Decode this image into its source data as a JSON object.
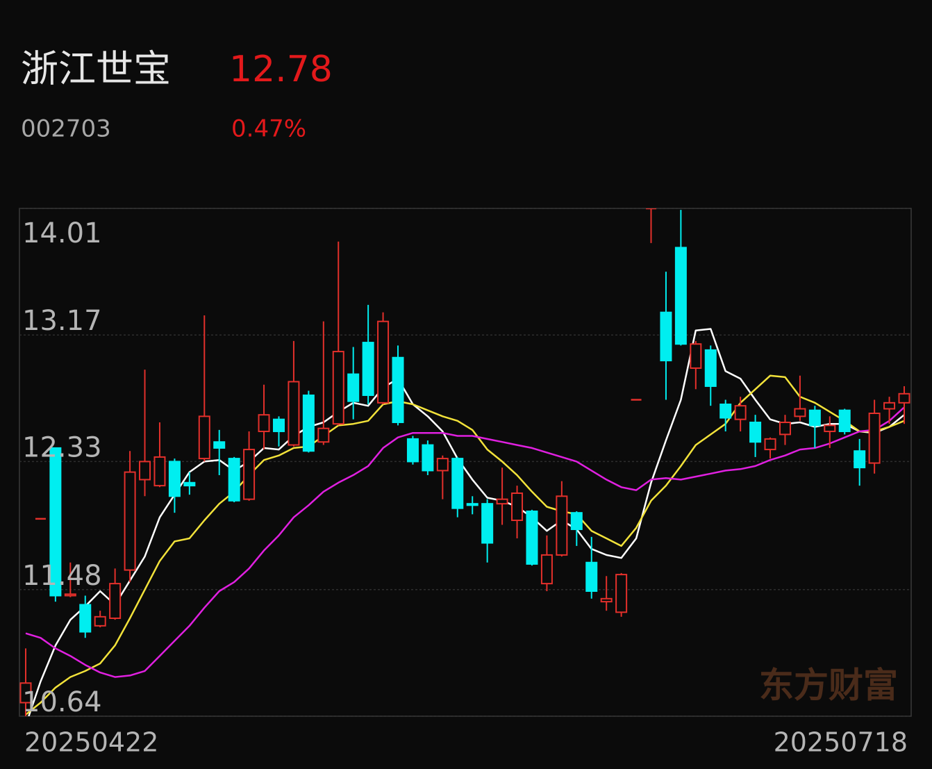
{
  "header": {
    "name": "浙江世宝",
    "price": "12.78",
    "code": "002703",
    "change": "0.47%"
  },
  "chart_data": {
    "type": "candlestick",
    "watermark": "东方财富",
    "categories": [
      "20250422",
      null,
      null,
      null,
      null,
      null,
      null,
      null,
      null,
      null,
      null,
      null,
      null,
      null,
      null,
      null,
      null,
      null,
      null,
      null,
      null,
      null,
      null,
      null,
      null,
      null,
      null,
      null,
      null,
      null,
      null,
      null,
      null,
      null,
      null,
      null,
      null,
      null,
      null,
      null,
      null,
      null,
      null,
      null,
      null,
      null,
      null,
      null,
      null,
      null,
      null,
      null,
      null,
      null,
      null,
      null,
      null,
      null,
      null,
      "20250718"
    ],
    "open": [
      10.73,
      11.95,
      12.42,
      11.44,
      11.38,
      11.24,
      11.29,
      11.61,
      12.21,
      12.17,
      12.33,
      12.19,
      12.35,
      12.46,
      12.35,
      12.08,
      12.53,
      12.61,
      12.44,
      12.77,
      12.46,
      12.58,
      12.91,
      13.12,
      12.72,
      13.02,
      12.48,
      12.44,
      12.27,
      12.35,
      12.05,
      12.05,
      12.05,
      11.94,
      12.0,
      11.52,
      11.71,
      11.99,
      11.66,
      11.4,
      11.33,
      12.74,
      14.01,
      13.32,
      13.75,
      12.95,
      13.07,
      12.71,
      12.61,
      12.59,
      12.41,
      12.51,
      12.63,
      12.67,
      12.53,
      12.67,
      12.4,
      12.32,
      12.68,
      12.72
    ],
    "high": [
      11.09,
      11.95,
      12.42,
      11.66,
      11.44,
      11.34,
      11.62,
      12.4,
      12.94,
      12.59,
      12.35,
      12.26,
      13.3,
      12.54,
      12.36,
      12.53,
      12.84,
      12.63,
      13.13,
      12.8,
      13.26,
      13.79,
      13.09,
      13.37,
      13.32,
      13.1,
      12.5,
      12.47,
      12.37,
      12.36,
      12.1,
      12.08,
      12.29,
      12.17,
      12.01,
      11.84,
      12.2,
      12.0,
      11.83,
      11.57,
      11.59,
      12.74,
      14.01,
      13.59,
      14.0,
      13.13,
      13.1,
      12.74,
      12.76,
      12.64,
      12.49,
      12.64,
      12.9,
      12.7,
      12.63,
      12.68,
      12.48,
      12.74,
      12.76,
      12.83
    ],
    "low": [
      10.64,
      11.95,
      11.4,
      11.43,
      11.16,
      11.23,
      11.28,
      11.53,
      12.1,
      12.16,
      11.99,
      12.11,
      12.33,
      12.24,
      12.06,
      12.07,
      12.41,
      12.43,
      12.43,
      12.39,
      12.44,
      12.57,
      12.61,
      12.71,
      12.71,
      12.57,
      12.31,
      12.24,
      12.08,
      11.96,
      11.98,
      11.66,
      11.91,
      11.82,
      11.64,
      11.47,
      11.7,
      11.77,
      11.42,
      11.34,
      11.3,
      12.74,
      13.78,
      12.74,
      13.1,
      12.81,
      12.7,
      12.53,
      12.53,
      12.36,
      12.35,
      12.44,
      12.6,
      12.42,
      12.42,
      12.51,
      12.17,
      12.25,
      12.58,
      12.58
    ],
    "close": [
      10.86,
      11.95,
      11.44,
      11.45,
      11.2,
      11.3,
      11.52,
      12.26,
      12.33,
      12.36,
      12.1,
      12.17,
      12.63,
      12.42,
      12.07,
      12.41,
      12.64,
      12.53,
      12.86,
      12.4,
      12.55,
      13.06,
      12.73,
      12.77,
      13.26,
      12.59,
      12.33,
      12.27,
      12.35,
      12.02,
      12.04,
      11.79,
      12.08,
      12.12,
      11.65,
      11.71,
      12.1,
      11.88,
      11.47,
      11.42,
      11.58,
      12.74,
      14.01,
      13.0,
      13.11,
      13.11,
      12.83,
      12.62,
      12.7,
      12.46,
      12.48,
      12.59,
      12.68,
      12.57,
      12.57,
      12.53,
      12.29,
      12.65,
      12.72,
      12.78
    ],
    "up_color": "#e3302b",
    "down_color": "#00eef0",
    "series": [
      {
        "color": "#ffffff",
        "values": [
          10.58,
          10.87,
          11.11,
          11.28,
          11.37,
          11.47,
          11.38,
          11.54,
          11.7,
          11.96,
          12.11,
          12.26,
          12.33,
          12.34,
          12.27,
          12.33,
          12.42,
          12.41,
          12.5,
          12.56,
          12.59,
          12.66,
          12.72,
          12.7,
          12.82,
          12.88,
          12.71,
          12.63,
          12.53,
          12.35,
          12.21,
          12.09,
          12.07,
          12.03,
          11.96,
          11.87,
          11.94,
          11.88,
          11.75,
          11.71,
          11.69,
          11.82,
          12.19,
          12.47,
          12.74,
          13.2,
          13.21,
          12.93,
          12.88,
          12.74,
          12.61,
          12.58,
          12.59,
          12.56,
          12.58,
          12.58,
          12.53,
          12.52,
          12.56,
          12.64
        ]
      },
      {
        "color": "#f2e23a",
        "values": [
          10.65,
          10.73,
          10.83,
          10.9,
          10.94,
          10.99,
          11.11,
          11.29,
          11.48,
          11.67,
          11.8,
          11.82,
          11.94,
          12.05,
          12.13,
          12.24,
          12.34,
          12.37,
          12.42,
          12.43,
          12.5,
          12.57,
          12.58,
          12.6,
          12.71,
          12.73,
          12.71,
          12.67,
          12.63,
          12.6,
          12.54,
          12.41,
          12.33,
          12.24,
          12.13,
          12.03,
          12.0,
          11.98,
          11.87,
          11.82,
          11.77,
          11.89,
          12.07,
          12.17,
          12.3,
          12.44,
          12.51,
          12.58,
          12.72,
          12.81,
          12.9,
          12.89,
          12.76,
          12.72,
          12.66,
          12.6,
          12.53,
          12.53,
          12.56,
          12.6
        ]
      },
      {
        "color": "#e020e0",
        "values": [
          11.19,
          11.16,
          11.09,
          11.04,
          10.98,
          10.93,
          10.9,
          10.91,
          10.94,
          11.04,
          11.14,
          11.24,
          11.36,
          11.47,
          11.53,
          11.62,
          11.74,
          11.84,
          11.96,
          12.04,
          12.13,
          12.19,
          12.24,
          12.3,
          12.42,
          12.49,
          12.52,
          12.52,
          12.52,
          12.5,
          12.5,
          12.48,
          12.46,
          12.44,
          12.42,
          12.39,
          12.36,
          12.33,
          12.27,
          12.21,
          12.16,
          12.14,
          12.21,
          12.22,
          12.21,
          12.23,
          12.25,
          12.27,
          12.28,
          12.3,
          12.34,
          12.37,
          12.41,
          12.42,
          12.45,
          12.49,
          12.53,
          12.54,
          12.6,
          12.69
        ]
      }
    ],
    "ylim": [
      10.64,
      14.01
    ],
    "yticks": [
      14.01,
      13.17,
      12.33,
      11.48,
      10.64
    ],
    "grid": true
  }
}
